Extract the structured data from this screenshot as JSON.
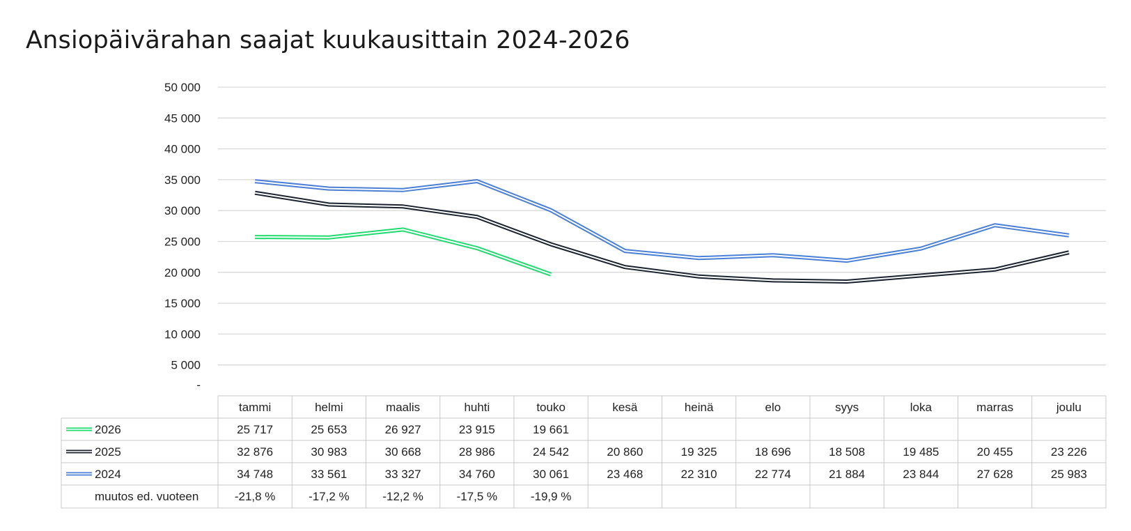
{
  "title": "Ansiopäivärahan saajat kuukausittain 2024-2026",
  "chart_data": {
    "type": "line",
    "title": "Ansiopäivärahan saajat kuukausittain 2024-2026",
    "categories": [
      "tammi",
      "helmi",
      "maalis",
      "huhti",
      "touko",
      "kesä",
      "heinä",
      "elo",
      "syys",
      "loka",
      "marras",
      "joulu"
    ],
    "ylim": [
      0,
      50000
    ],
    "yticks": [
      {
        "value": 0,
        "label": "-"
      },
      {
        "value": 5000,
        "label": "5 000"
      },
      {
        "value": 10000,
        "label": "10 000"
      },
      {
        "value": 15000,
        "label": "15 000"
      },
      {
        "value": 20000,
        "label": "20 000"
      },
      {
        "value": 25000,
        "label": "25 000"
      },
      {
        "value": 30000,
        "label": "30 000"
      },
      {
        "value": 35000,
        "label": "35 000"
      },
      {
        "value": 40000,
        "label": "40 000"
      },
      {
        "value": 45000,
        "label": "45 000"
      },
      {
        "value": 50000,
        "label": "50 000"
      }
    ],
    "grid": true,
    "legend": "data table",
    "series": [
      {
        "name": "2026",
        "color": "#1fdb6f",
        "values": [
          25717,
          25653,
          26927,
          23915,
          19661,
          null,
          null,
          null,
          null,
          null,
          null,
          null
        ],
        "labels": [
          "25 717",
          "25 653",
          "26 927",
          "23 915",
          "19 661",
          "",
          "",
          "",
          "",
          "",
          "",
          ""
        ]
      },
      {
        "name": "2025",
        "color": "#1b2330",
        "values": [
          32876,
          30983,
          30668,
          28986,
          24542,
          20860,
          19325,
          18696,
          18508,
          19485,
          20455,
          23226
        ],
        "labels": [
          "32 876",
          "30 983",
          "30 668",
          "28 986",
          "24 542",
          "20 860",
          "19 325",
          "18 696",
          "18 508",
          "19 485",
          "20 455",
          "23 226"
        ]
      },
      {
        "name": "2024",
        "color": "#4a7fd6",
        "values": [
          34748,
          33561,
          33327,
          34760,
          30061,
          23468,
          22310,
          22774,
          21884,
          23844,
          27628,
          25983
        ],
        "labels": [
          "34 748",
          "33 561",
          "33 327",
          "34 760",
          "30 061",
          "23 468",
          "22 310",
          "22 774",
          "21 884",
          "23 844",
          "27 628",
          "25 983"
        ]
      }
    ],
    "change_row": {
      "label": "muutos ed. vuoteen",
      "values": [
        "-21,8 %",
        "-17,2 %",
        "-12,2 %",
        "-17,5 %",
        "-19,9 %",
        "",
        "",
        "",
        "",
        "",
        "",
        ""
      ]
    }
  }
}
